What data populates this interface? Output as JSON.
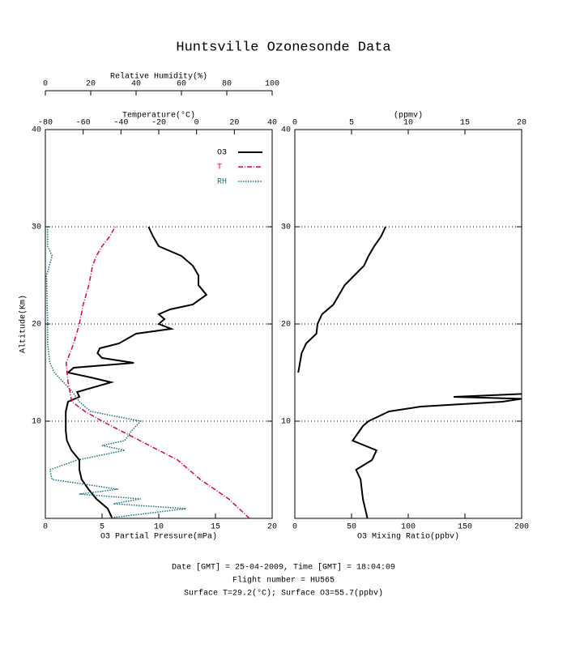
{
  "title": "Huntsville Ozonesonde Data",
  "footer": [
    "Date [GMT] = 25-04-2009,  Time [GMT] = 18:04:09",
    "Flight number = HU565",
    "Surface T=29.2(°C); Surface O3=55.7(ppbv)"
  ],
  "chart_data": [
    {
      "type": "line",
      "ylabel": "Altitude(Km)",
      "ylim": [
        0,
        40
      ],
      "yticks": [
        10,
        20,
        30,
        40
      ],
      "grid": true,
      "legend": "upper right",
      "xlabel": "O3 Partial Pressure(mPa)",
      "xlim": [
        0,
        20
      ],
      "xticks": [
        0,
        5,
        10,
        15,
        20
      ],
      "x2label": "Temperature(°C)",
      "x2lim": [
        -80,
        40
      ],
      "x2ticks": [
        -80,
        -60,
        -40,
        -20,
        0,
        20,
        40
      ],
      "x3label": "Relative Humidity(%)",
      "x3lim": [
        0,
        100
      ],
      "x3ticks": [
        0,
        20,
        40,
        60,
        80,
        100
      ],
      "series": [
        {
          "name": "O3",
          "color": "#000000",
          "line_style": "solid",
          "axis": "x",
          "y": [
            0,
            1,
            2,
            3,
            4,
            5,
            6,
            7,
            8,
            9,
            10,
            11,
            12,
            12.5,
            13,
            14,
            14.5,
            15,
            15.5,
            16,
            16.5,
            17,
            17.5,
            18,
            19,
            19.5,
            20,
            20.5,
            21,
            21.5,
            22,
            23,
            24,
            25,
            26,
            27,
            28,
            29,
            30
          ],
          "values": [
            5.9,
            5.5,
            4.5,
            3.8,
            3.2,
            3.0,
            3.0,
            2.3,
            1.9,
            1.8,
            1.8,
            1.8,
            2.0,
            3.0,
            2.8,
            5.8,
            4.0,
            2.0,
            2.5,
            7.8,
            5.0,
            4.6,
            4.8,
            6.5,
            8.0,
            11.1,
            10.0,
            10.5,
            10.0,
            11.0,
            13.0,
            14.2,
            13.5,
            13.5,
            13.0,
            12.0,
            10.0,
            9.5,
            9.1
          ]
        },
        {
          "name": "T",
          "color": "#dd0055",
          "line_style": "dashdot",
          "axis": "x2",
          "y": [
            0,
            2,
            4,
            6,
            8,
            10,
            11,
            12,
            14,
            16,
            18,
            20,
            22,
            24,
            26,
            27,
            28,
            29,
            30
          ],
          "values": [
            28,
            17,
            2,
            -10,
            -30,
            -50,
            -59,
            -66,
            -68,
            -69,
            -65,
            -62,
            -60,
            -57,
            -55,
            -53,
            -50,
            -46,
            -43
          ]
        },
        {
          "name": "RH",
          "color": "#1a6e7a",
          "line_style": "dotted",
          "axis": "x3",
          "y": [
            0,
            1,
            1.5,
            2,
            2.5,
            3,
            4,
            5,
            6,
            7,
            7.5,
            8,
            9,
            10,
            11,
            12,
            13,
            14,
            15,
            16,
            18,
            20,
            25,
            27,
            28,
            30
          ],
          "values": [
            27,
            62,
            30,
            42,
            15,
            32,
            3,
            2,
            14,
            35,
            25,
            35,
            38,
            42,
            20,
            15,
            12,
            8,
            4,
            2,
            1,
            1,
            0.5,
            3,
            1,
            1
          ]
        }
      ]
    },
    {
      "type": "line",
      "ylim": [
        0,
        40
      ],
      "yticks": [
        10,
        20,
        30,
        40
      ],
      "grid": true,
      "xlabel": "O3 Mixing Ratio(ppbv)",
      "xlim": [
        0,
        200
      ],
      "xticks": [
        0,
        50,
        100,
        150,
        200
      ],
      "x2label": "(ppmv)",
      "x2lim": [
        0,
        20
      ],
      "x2ticks": [
        0,
        5,
        10,
        15,
        20
      ],
      "series": [
        {
          "color": "#000000",
          "line_style": "solid",
          "axis": "x",
          "y": [
            0,
            2,
            4,
            5,
            6,
            7,
            8,
            9.5,
            10,
            11,
            11.5,
            12,
            12.3,
            12.5,
            12.8,
            14,
            15,
            17,
            18,
            19,
            20,
            21,
            22,
            24,
            26,
            27,
            28,
            29,
            30
          ],
          "values": [
            64,
            60,
            58,
            54,
            68,
            72,
            51,
            60,
            65,
            83,
            111,
            183,
            200,
            140,
            200,
            null,
            3,
            6,
            10,
            19,
            20,
            24,
            34,
            44,
            61,
            65,
            70,
            76,
            80
          ]
        }
      ]
    }
  ]
}
